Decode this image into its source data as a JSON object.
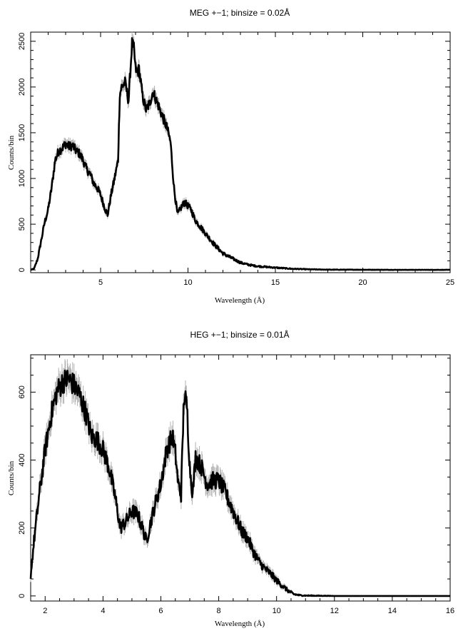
{
  "chart_data": [
    {
      "type": "line",
      "title": "MEG +−1; binsize = 0.02Å",
      "xlabel": "Wavelength (Å)",
      "ylabel": "Counts/bin",
      "xlim": [
        1.0,
        25.0
      ],
      "ylim": [
        -30,
        2600
      ],
      "xticks": [
        5,
        10,
        15,
        20,
        25
      ],
      "yticks": [
        0,
        500,
        1000,
        1500,
        2000,
        2500
      ],
      "grid": false,
      "series": [
        {
          "x": [
            1.0,
            1.2,
            1.4,
            1.6,
            1.8,
            2.0,
            2.2,
            2.4,
            2.6,
            2.8,
            3.0,
            3.2,
            3.4,
            3.6,
            3.8,
            4.0,
            4.2,
            4.4,
            4.6,
            4.8,
            5.0,
            5.2,
            5.4,
            5.6,
            5.8,
            6.0,
            6.1,
            6.2,
            6.4,
            6.6,
            6.8,
            6.9,
            7.0,
            7.1,
            7.2,
            7.4,
            7.6,
            7.8,
            8.0,
            8.2,
            8.4,
            8.6,
            8.8,
            9.0,
            9.2,
            9.4,
            9.6,
            9.8,
            10.0,
            10.2,
            10.4,
            10.6,
            10.8,
            11.0,
            11.5,
            12.0,
            12.5,
            13.0,
            13.5,
            14.0,
            15.0,
            16.0,
            17.0,
            18.0,
            20.0,
            22.0,
            25.0
          ],
          "y": [
            0,
            15,
            120,
            320,
            520,
            660,
            900,
            1200,
            1300,
            1330,
            1380,
            1350,
            1360,
            1300,
            1270,
            1200,
            1100,
            1050,
            950,
            900,
            820,
            700,
            600,
            820,
            1000,
            1200,
            1920,
            2000,
            2050,
            1850,
            2480,
            2420,
            2200,
            2150,
            2200,
            1900,
            1750,
            1820,
            1950,
            1850,
            1750,
            1650,
            1550,
            1400,
            900,
            600,
            680,
            740,
            700,
            650,
            550,
            500,
            450,
            400,
            280,
            180,
            130,
            80,
            55,
            40,
            25,
            12,
            6,
            3,
            2,
            1,
            1
          ]
        }
      ]
    },
    {
      "type": "line",
      "title": "HEG +−1; binsize = 0.01Å",
      "xlabel": "Wavelength (Å)",
      "ylabel": "Counts/bin",
      "xlim": [
        1.5,
        16.0
      ],
      "ylim": [
        -15,
        710
      ],
      "xticks": [
        2,
        4,
        6,
        8,
        10,
        12,
        14,
        16
      ],
      "yticks": [
        0,
        200,
        400,
        600
      ],
      "grid": false,
      "series": [
        {
          "x": [
            1.5,
            1.6,
            1.8,
            2.0,
            2.2,
            2.4,
            2.6,
            2.8,
            3.0,
            3.2,
            3.4,
            3.6,
            3.8,
            4.0,
            4.2,
            4.4,
            4.6,
            4.8,
            5.0,
            5.2,
            5.4,
            5.5,
            5.6,
            5.8,
            6.0,
            6.2,
            6.4,
            6.5,
            6.6,
            6.7,
            6.8,
            6.9,
            7.0,
            7.1,
            7.2,
            7.4,
            7.6,
            7.8,
            8.0,
            8.2,
            8.4,
            8.6,
            8.8,
            9.0,
            9.2,
            9.4,
            9.6,
            9.8,
            10.0,
            10.2,
            10.4,
            10.6,
            10.8,
            11.0,
            12.0,
            14.0,
            16.0
          ],
          "y": [
            60,
            150,
            300,
            430,
            530,
            600,
            630,
            640,
            620,
            590,
            540,
            470,
            460,
            430,
            380,
            300,
            200,
            220,
            250,
            240,
            190,
            160,
            200,
            270,
            330,
            430,
            470,
            420,
            330,
            300,
            590,
            560,
            380,
            300,
            410,
            380,
            330,
            340,
            340,
            310,
            270,
            230,
            190,
            170,
            130,
            100,
            80,
            65,
            45,
            30,
            15,
            5,
            2,
            1,
            0,
            0,
            0
          ]
        }
      ]
    }
  ]
}
